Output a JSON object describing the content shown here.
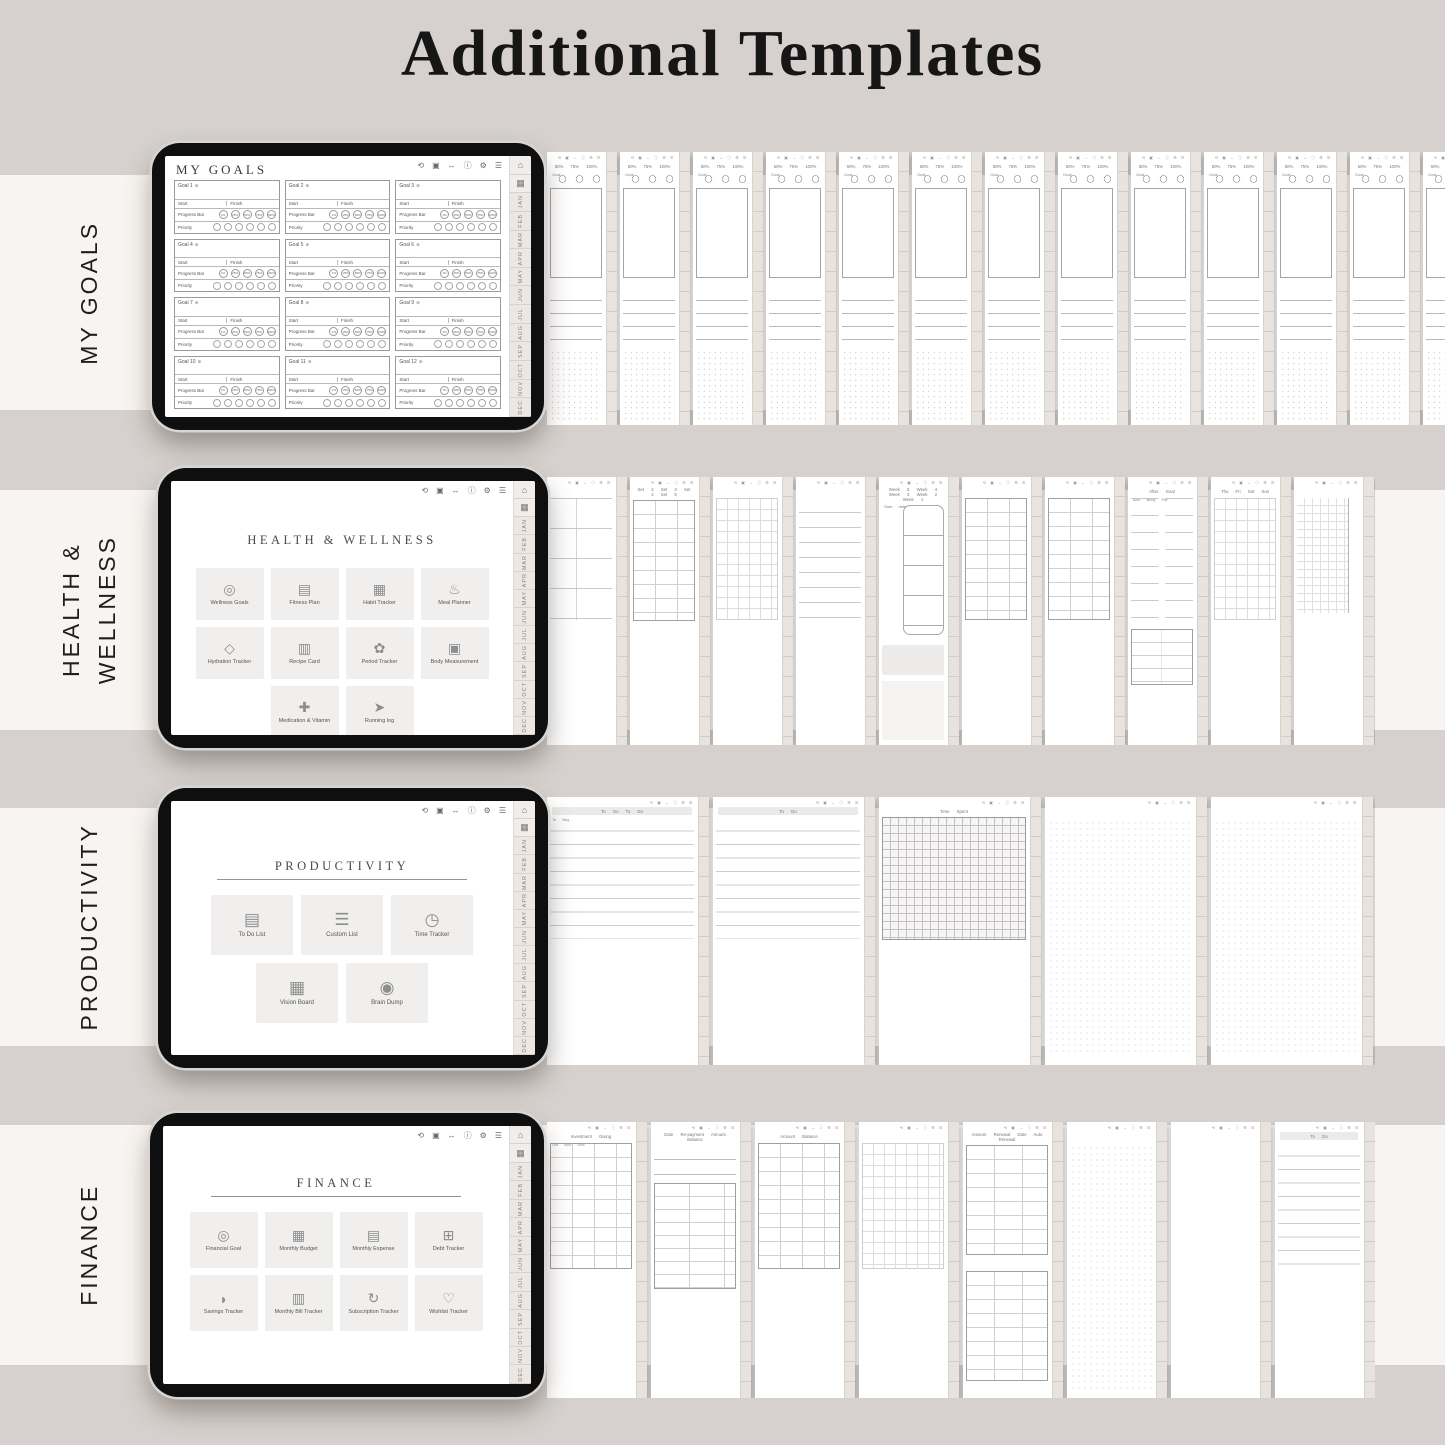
{
  "title": "Additional Templates",
  "colors": {
    "background": "#d6d1ce",
    "band": "#f8f4f1",
    "tablet_frame": "#0f0f0f",
    "page": "#ffffff",
    "rail": "#ece7e2",
    "tile": "#f0efed"
  },
  "icons": {
    "home": "⌂",
    "index": "▦",
    "plus": "⊕",
    "toolbar": [
      "⟲",
      "▣",
      "↔",
      "ⓘ",
      "⚙",
      "☰"
    ],
    "mini_toolbar": "⟲ ▣ ↔ ⓘ ⚙ ☰"
  },
  "months": [
    "JAN",
    "FEB",
    "MAR",
    "APR",
    "MAY",
    "JUN",
    "JUL",
    "AUG",
    "SEP",
    "OCT",
    "NOV",
    "DEC"
  ],
  "rows": [
    {
      "label_lines": [
        "MY GOALS"
      ]
    },
    {
      "label_lines": [
        "HEALTH &",
        "WELLNESS"
      ]
    },
    {
      "label_lines": [
        "PRODUCTIVITY"
      ]
    },
    {
      "label_lines": [
        "FINANCE"
      ]
    }
  ],
  "goals": {
    "screen_title": "MY GOALS",
    "start_label": "Start",
    "finish_label": "Finish",
    "progress_label": "Progress Bar",
    "priority_label": "Priority",
    "progress_ticks": [
      "1%",
      "25%",
      "50%",
      "75%",
      "100%"
    ],
    "cards": [
      {
        "title": "Goal 1"
      },
      {
        "title": "Goal 2"
      },
      {
        "title": "Goal 3"
      },
      {
        "title": "Goal 4"
      },
      {
        "title": "Goal 5"
      },
      {
        "title": "Goal 6"
      },
      {
        "title": "Goal 7"
      },
      {
        "title": "Goal 8"
      },
      {
        "title": "Goal 9"
      },
      {
        "title": "Goal 10"
      },
      {
        "title": "Goal 11"
      },
      {
        "title": "Goal 12"
      }
    ]
  },
  "hubs": [
    {
      "heading": "HEALTH & WELLNESS",
      "tiles": [
        {
          "label": "Wellness Goals",
          "glyph": "◎"
        },
        {
          "label": "Fitness Plan",
          "glyph": "▤"
        },
        {
          "label": "Habit Tracker",
          "glyph": "▦"
        },
        {
          "label": "Meal Planner",
          "glyph": "♨"
        },
        {
          "label": "Hydration Tracker",
          "glyph": "◇"
        },
        {
          "label": "Recipe Card",
          "glyph": "▥"
        },
        {
          "label": "Period Tracker",
          "glyph": "✿"
        },
        {
          "label": "Body Measurement",
          "glyph": "▣"
        },
        {
          "label": "Medication & Vitamin",
          "glyph": "✚"
        },
        {
          "label": "Running log",
          "glyph": "➤"
        }
      ]
    },
    {
      "heading": "PRODUCTIVITY",
      "tiles": [
        {
          "label": "To Do List",
          "glyph": "▤"
        },
        {
          "label": "Custom List",
          "glyph": "☰"
        },
        {
          "label": "Time Tracker",
          "glyph": "◷"
        },
        {
          "label": "Vision Board",
          "glyph": "▦"
        },
        {
          "label": "Brain Dump",
          "glyph": "◉"
        }
      ]
    },
    {
      "heading": "FINANCE",
      "tiles": [
        {
          "label": "Financial Goal",
          "glyph": "◎"
        },
        {
          "label": "Monthly Budget",
          "glyph": "▦"
        },
        {
          "label": "Monthly Expense",
          "glyph": "▤"
        },
        {
          "label": "Debt Tracker",
          "glyph": "⊞"
        },
        {
          "label": "Savings Tracker",
          "glyph": "◗"
        },
        {
          "label": "Monthly Bill Tracker",
          "glyph": "▥"
        },
        {
          "label": "Subscription Tracker",
          "glyph": "↻"
        },
        {
          "label": "Wishlist Tracker",
          "glyph": "♡"
        }
      ]
    }
  ],
  "strips": [
    {
      "items": [
        {
          "variant": "goal",
          "caption": "50% 75% 100%",
          "caption2": "Goal"
        },
        {
          "variant": "goal",
          "caption": "50% 75% 100%",
          "caption2": "Goal"
        },
        {
          "variant": "goal",
          "caption": "50% 75% 100%",
          "caption2": "Goal"
        },
        {
          "variant": "goal",
          "caption": "50% 75% 100%",
          "caption2": "Goal"
        },
        {
          "variant": "goal",
          "caption": "50% 75% 100%",
          "caption2": "Goal"
        },
        {
          "variant": "goal",
          "caption": "50% 75% 100%",
          "caption2": "Goal"
        },
        {
          "variant": "goal",
          "caption": "50% 75% 100%",
          "caption2": "Goal"
        },
        {
          "variant": "goal",
          "caption": "50% 75% 100%",
          "caption2": "Goal"
        },
        {
          "variant": "goal",
          "caption": "50% 75% 100%",
          "caption2": "Goal"
        },
        {
          "variant": "goal",
          "caption": "50% 75% 100%",
          "caption2": "Goal"
        },
        {
          "variant": "goal",
          "caption": "50% 75% 100%",
          "caption2": "Goal"
        },
        {
          "variant": "goal",
          "caption": "50% 75% 100%",
          "caption2": "Goal"
        },
        {
          "variant": "goal",
          "caption": "50% 75% 100%",
          "caption2": "Goal"
        }
      ]
    },
    {
      "items": [
        {
          "variant": "checks",
          "caption": ""
        },
        {
          "variant": "table",
          "caption": "Set 2 Set 3 Set 4 Set 5"
        },
        {
          "variant": "grid",
          "caption": ""
        },
        {
          "variant": "lines",
          "caption": ""
        },
        {
          "variant": "weeks",
          "caption": "Week 5 Week 4 Week 3 Week 2 Week 1",
          "caption2": "Start date"
        },
        {
          "variant": "table",
          "caption": ""
        },
        {
          "variant": "table",
          "caption": ""
        },
        {
          "variant": "form",
          "caption": "After Goal",
          "caption2": "Arm  Body Fat"
        },
        {
          "variant": "grid",
          "caption": "Thu Fri Sat Sun"
        },
        {
          "variant": "chart",
          "caption": ""
        }
      ]
    },
    {
      "items": [
        {
          "variant": "todo",
          "caption": "To Go   To Do",
          "caption2": "To Buy"
        },
        {
          "variant": "todo",
          "caption": "To Do"
        },
        {
          "variant": "dense",
          "caption": "Time Spent"
        },
        {
          "variant": "dots",
          "caption": ""
        },
        {
          "variant": "dots",
          "caption": ""
        }
      ]
    },
    {
      "items": [
        {
          "variant": "table",
          "caption": "Investment Giving",
          "caption2": "Oct  Nov  Dec"
        },
        {
          "variant": "linestable",
          "caption": "Date  Re-payment Amount  Balance"
        },
        {
          "variant": "table",
          "caption": "Amount Balance"
        },
        {
          "variant": "grid",
          "caption": ""
        },
        {
          "variant": "subs",
          "caption": "Amount  Renewal Date  Auto Renewal"
        },
        {
          "variant": "dots",
          "caption": ""
        },
        {
          "variant": "blank",
          "caption": ""
        },
        {
          "variant": "todo",
          "caption": "To Do"
        }
      ]
    }
  ]
}
